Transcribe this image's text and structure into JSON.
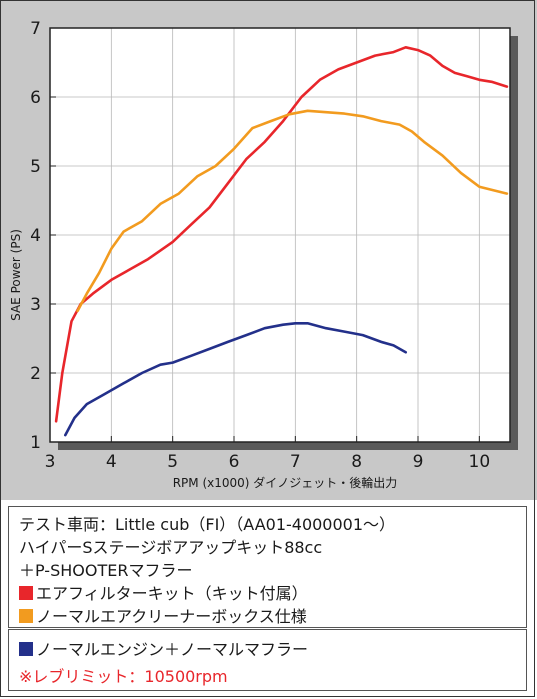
{
  "colors": {
    "red": "#e8262b",
    "orange": "#f29b1f",
    "navy": "#23308a",
    "plot_bg": "#ffffff",
    "panel_bg": "#c8c8c8"
  },
  "chart_data": {
    "type": "line",
    "xlabel": "RPM (x1000) ダイノジェット・後輪出力",
    "ylabel": "SAE Power (PS)",
    "xlim": [
      3,
      10.5
    ],
    "ylim": [
      1,
      7
    ],
    "xticks": [
      "3",
      "4",
      "5",
      "6",
      "7",
      "8",
      "9",
      "10"
    ],
    "yticks": [
      "1",
      "2",
      "3",
      "4",
      "5",
      "6",
      "7"
    ],
    "grid": true,
    "series": [
      {
        "color": "#e8262b",
        "x": [
          3.1,
          3.2,
          3.35,
          3.5,
          3.7,
          4.0,
          4.3,
          4.6,
          5.0,
          5.3,
          5.6,
          5.9,
          6.2,
          6.5,
          6.8,
          7.1,
          7.4,
          7.7,
          8.0,
          8.3,
          8.6,
          8.8,
          9.0,
          9.2,
          9.4,
          9.6,
          9.8,
          10.0,
          10.2,
          10.45
        ],
        "y": [
          1.3,
          2.0,
          2.75,
          3.0,
          3.15,
          3.35,
          3.5,
          3.65,
          3.9,
          4.15,
          4.4,
          4.75,
          5.1,
          5.35,
          5.65,
          6.0,
          6.25,
          6.4,
          6.5,
          6.6,
          6.65,
          6.72,
          6.68,
          6.6,
          6.45,
          6.35,
          6.3,
          6.25,
          6.22,
          6.15
        ]
      },
      {
        "color": "#f29b1f",
        "x": [
          3.45,
          3.6,
          3.8,
          4.0,
          4.2,
          4.5,
          4.8,
          5.1,
          5.4,
          5.7,
          6.0,
          6.3,
          6.6,
          6.9,
          7.2,
          7.5,
          7.8,
          8.1,
          8.4,
          8.7,
          8.9,
          9.1,
          9.4,
          9.7,
          10.0,
          10.45
        ],
        "y": [
          2.9,
          3.15,
          3.45,
          3.8,
          4.05,
          4.2,
          4.45,
          4.6,
          4.85,
          5.0,
          5.25,
          5.55,
          5.65,
          5.75,
          5.8,
          5.78,
          5.76,
          5.72,
          5.65,
          5.6,
          5.5,
          5.35,
          5.15,
          4.9,
          4.7,
          4.6
        ]
      },
      {
        "color": "#23308a",
        "x": [
          3.25,
          3.4,
          3.6,
          3.9,
          4.2,
          4.5,
          4.8,
          5.0,
          5.3,
          5.6,
          5.9,
          6.2,
          6.5,
          6.8,
          7.0,
          7.2,
          7.5,
          7.8,
          8.1,
          8.4,
          8.6,
          8.8
        ],
        "y": [
          1.1,
          1.35,
          1.55,
          1.7,
          1.85,
          2.0,
          2.12,
          2.15,
          2.25,
          2.35,
          2.45,
          2.55,
          2.65,
          2.7,
          2.72,
          2.72,
          2.65,
          2.6,
          2.55,
          2.45,
          2.4,
          2.3
        ]
      }
    ]
  },
  "info": {
    "line1": "テスト車両：Little cub（FI）（AA01-4000001〜）",
    "line2": "ハイパーSステージボアアップキット88cc",
    "line3": "＋P-SHOOTERマフラー",
    "legend_red": "エアフィルターキット（キット付属）",
    "legend_orange": "ノーマルエアクリーナーボックス仕様",
    "legend_navy": "ノーマルエンジン＋ノーマルマフラー",
    "note": "※レブリミット：10500rpm"
  }
}
